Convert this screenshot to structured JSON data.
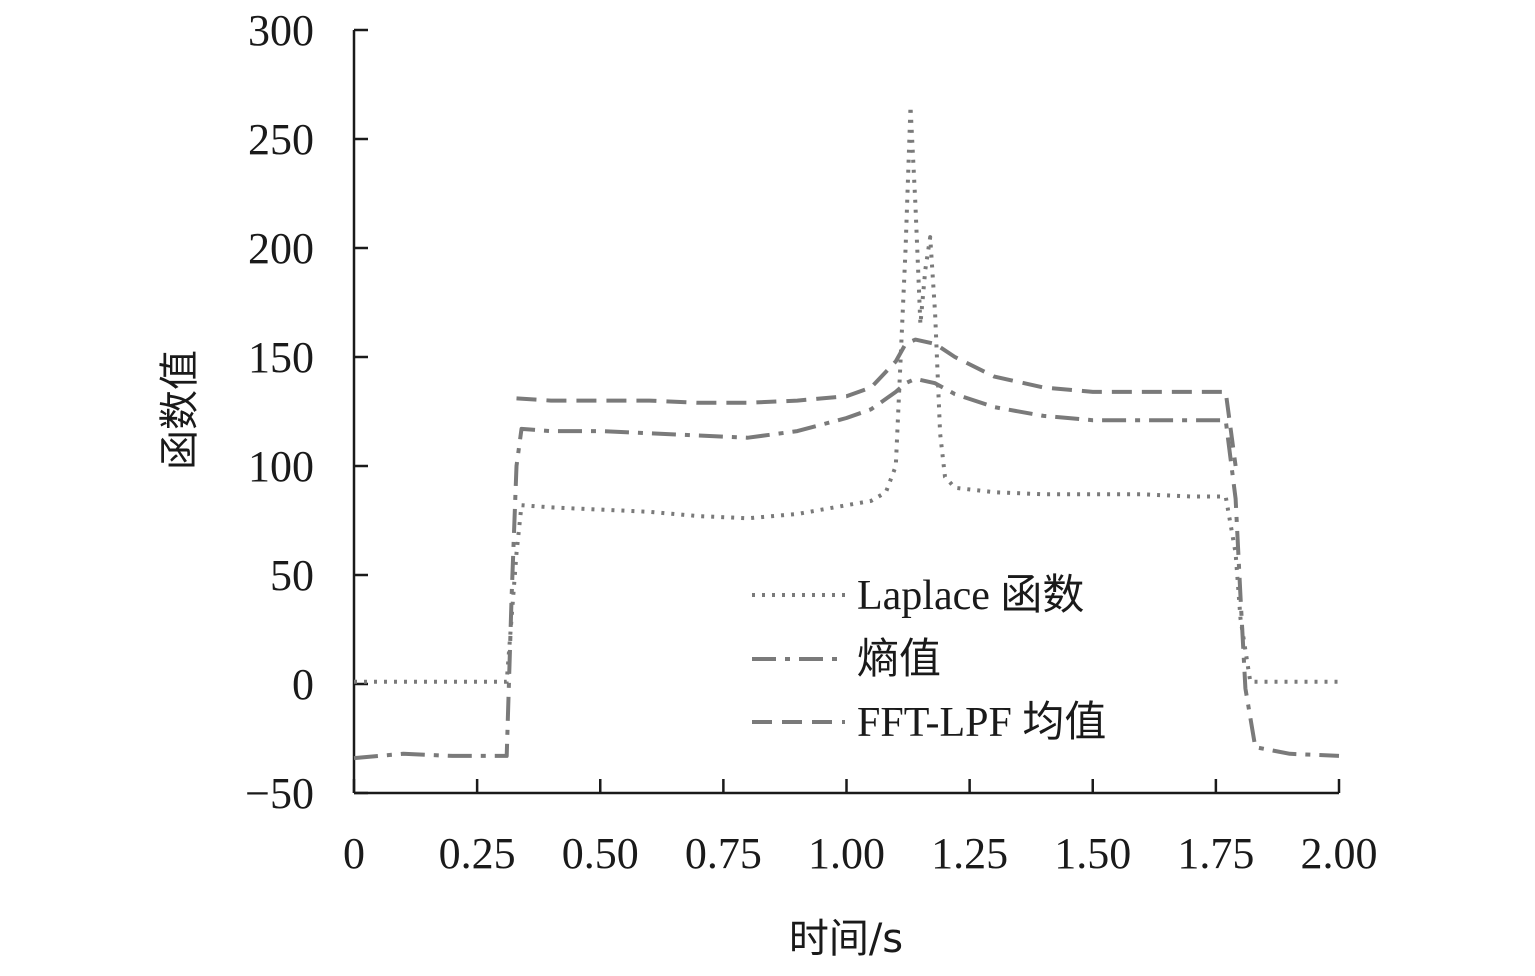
{
  "chart_data": {
    "type": "line",
    "title": "",
    "xlabel": "时间/s",
    "ylabel": "函数值",
    "xlim": [
      0,
      2.0
    ],
    "ylim": [
      -50,
      300
    ],
    "x_ticks": [
      0,
      0.25,
      0.5,
      0.75,
      1.0,
      1.25,
      1.5,
      1.75,
      2.0
    ],
    "x_tick_labels": [
      "0",
      "0.25",
      "0.50",
      "0.75",
      "1.00",
      "1.25",
      "1.50",
      "1.75",
      "2.00"
    ],
    "y_ticks": [
      -50,
      0,
      50,
      100,
      150,
      200,
      250,
      300
    ],
    "y_tick_labels": [
      "−50",
      "0",
      "50",
      "100",
      "150",
      "200",
      "250",
      "300"
    ],
    "grid": false,
    "legend_position": "bottom-right",
    "series": [
      {
        "name": "Laplace 函数",
        "style": "dotted",
        "color": "#7a7a7a",
        "points": [
          [
            0,
            1
          ],
          [
            0.1,
            1
          ],
          [
            0.2,
            1
          ],
          [
            0.31,
            1
          ],
          [
            0.33,
            60
          ],
          [
            0.34,
            82
          ],
          [
            0.4,
            81
          ],
          [
            0.5,
            80
          ],
          [
            0.6,
            79
          ],
          [
            0.7,
            77
          ],
          [
            0.8,
            76
          ],
          [
            0.9,
            78
          ],
          [
            1.0,
            82
          ],
          [
            1.05,
            84
          ],
          [
            1.08,
            88
          ],
          [
            1.1,
            100
          ],
          [
            1.11,
            150
          ],
          [
            1.12,
            200
          ],
          [
            1.13,
            265
          ],
          [
            1.14,
            220
          ],
          [
            1.15,
            165
          ],
          [
            1.16,
            190
          ],
          [
            1.17,
            205
          ],
          [
            1.18,
            170
          ],
          [
            1.19,
            115
          ],
          [
            1.2,
            95
          ],
          [
            1.22,
            90
          ],
          [
            1.3,
            88
          ],
          [
            1.4,
            87
          ],
          [
            1.5,
            87
          ],
          [
            1.6,
            87
          ],
          [
            1.7,
            86
          ],
          [
            1.77,
            86
          ],
          [
            1.79,
            60
          ],
          [
            1.8,
            30
          ],
          [
            1.82,
            1
          ],
          [
            1.9,
            1
          ],
          [
            2.0,
            1
          ]
        ]
      },
      {
        "name": "熵值",
        "style": "dash-dot",
        "color": "#7a7a7a",
        "points": [
          [
            0,
            -34
          ],
          [
            0.1,
            -32
          ],
          [
            0.2,
            -33
          ],
          [
            0.31,
            -33
          ],
          [
            0.32,
            40
          ],
          [
            0.33,
            100
          ],
          [
            0.34,
            117
          ],
          [
            0.4,
            116
          ],
          [
            0.5,
            116
          ],
          [
            0.6,
            115
          ],
          [
            0.7,
            114
          ],
          [
            0.8,
            113
          ],
          [
            0.9,
            116
          ],
          [
            1.0,
            122
          ],
          [
            1.05,
            126
          ],
          [
            1.1,
            134
          ],
          [
            1.12,
            138
          ],
          [
            1.14,
            140
          ],
          [
            1.18,
            138
          ],
          [
            1.22,
            133
          ],
          [
            1.3,
            127
          ],
          [
            1.4,
            123
          ],
          [
            1.5,
            121
          ],
          [
            1.6,
            121
          ],
          [
            1.7,
            121
          ],
          [
            1.77,
            121
          ],
          [
            1.79,
            85
          ],
          [
            1.8,
            40
          ],
          [
            1.81,
            -2
          ],
          [
            1.83,
            -29
          ],
          [
            1.9,
            -32
          ],
          [
            2.0,
            -33
          ]
        ]
      },
      {
        "name": "FFT-LPF 均值",
        "style": "dashed",
        "color": "#7a7a7a",
        "points": [
          [
            0.33,
            131
          ],
          [
            0.4,
            130
          ],
          [
            0.5,
            130
          ],
          [
            0.6,
            130
          ],
          [
            0.7,
            129
          ],
          [
            0.8,
            129
          ],
          [
            0.9,
            130
          ],
          [
            1.0,
            132
          ],
          [
            1.05,
            136
          ],
          [
            1.1,
            148
          ],
          [
            1.12,
            156
          ],
          [
            1.14,
            158
          ],
          [
            1.18,
            156
          ],
          [
            1.22,
            150
          ],
          [
            1.3,
            141
          ],
          [
            1.4,
            136
          ],
          [
            1.5,
            134
          ],
          [
            1.6,
            134
          ],
          [
            1.7,
            134
          ],
          [
            1.77,
            134
          ],
          [
            1.79,
            100
          ]
        ]
      }
    ]
  }
}
